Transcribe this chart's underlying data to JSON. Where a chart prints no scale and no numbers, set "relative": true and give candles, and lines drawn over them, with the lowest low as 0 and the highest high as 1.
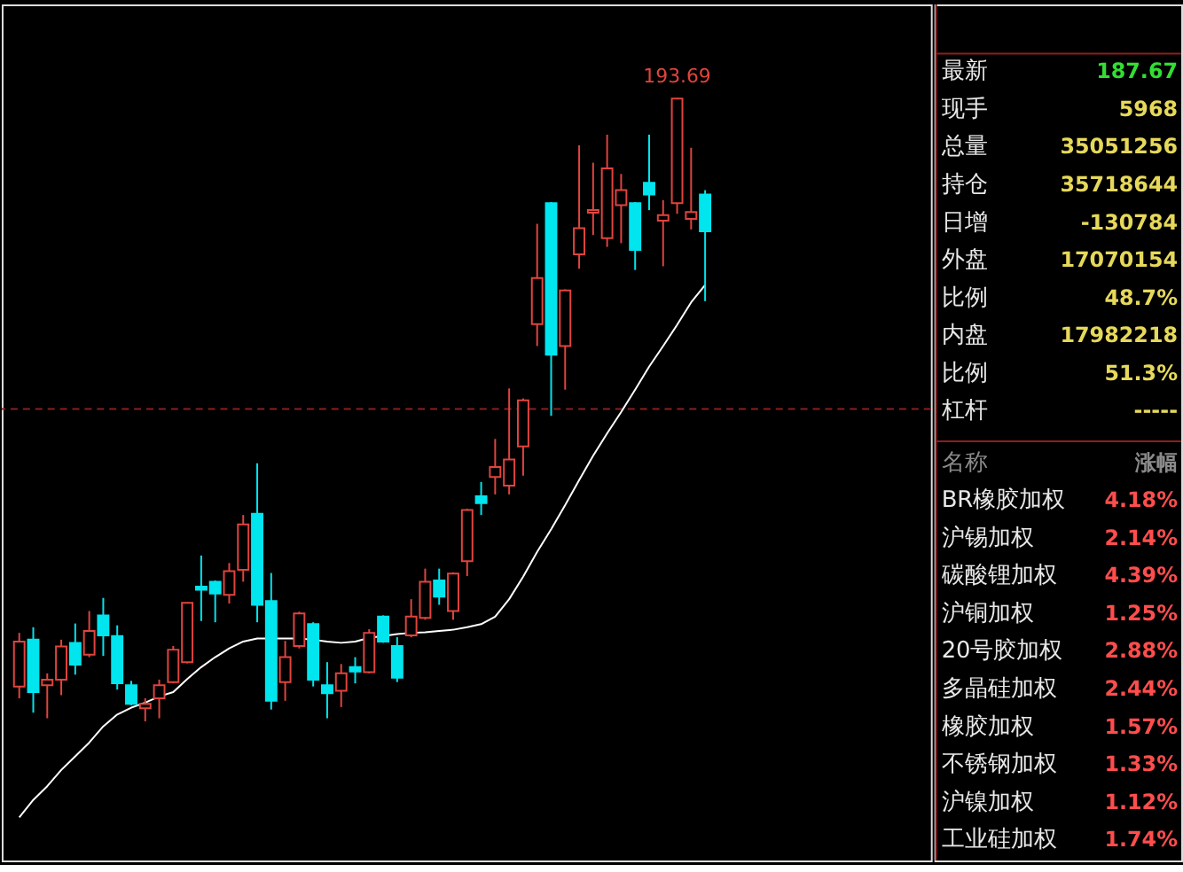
{
  "chart_data": [
    {
      "type": "candlestick",
      "relative": true,
      "categories": [
        null,
        null,
        null,
        null,
        null,
        null,
        null,
        null,
        null,
        null,
        null,
        null,
        null,
        null,
        null,
        null,
        null,
        null,
        null,
        null,
        null,
        null,
        null,
        null,
        null,
        null,
        null,
        null,
        null,
        null,
        null,
        null,
        null,
        null,
        null,
        null,
        null,
        null,
        null,
        null,
        null,
        null,
        null,
        null,
        null,
        null,
        null,
        null,
        null,
        null
      ],
      "ohlc": [
        [
          0.056,
          0.142,
          0.037,
          0.128
        ],
        [
          0.131,
          0.151,
          0.014,
          0.047
        ],
        [
          0.058,
          0.077,
          0.005,
          0.067
        ],
        [
          0.067,
          0.131,
          0.042,
          0.12
        ],
        [
          0.126,
          0.157,
          0.075,
          0.091
        ],
        [
          0.107,
          0.177,
          0.103,
          0.145
        ],
        [
          0.17,
          0.198,
          0.105,
          0.138
        ],
        [
          0.137,
          0.154,
          0.051,
          0.061
        ],
        [
          0.058,
          0.065,
          0.026,
          0.028
        ],
        [
          0.021,
          0.037,
          0,
          0.028
        ],
        [
          0.037,
          0.067,
          0.005,
          0.058
        ],
        [
          0.063,
          0.121,
          0.061,
          0.115
        ],
        [
          0.095,
          0.191,
          0.093,
          0.19
        ],
        [
          0.216,
          0.266,
          0.161,
          0.211
        ],
        [
          0.224,
          0.226,
          0.159,
          0.205
        ],
        [
          0.203,
          0.254,
          0.189,
          0.241
        ],
        [
          0.243,
          0.331,
          0.224,
          0.316
        ],
        [
          0.333,
          0.414,
          0.159,
          0.187
        ],
        [
          0.193,
          0.238,
          0.019,
          0.033
        ],
        [
          0.063,
          0.129,
          0.033,
          0.103
        ],
        [
          0.121,
          0.176,
          0.117,
          0.173
        ],
        [
          0.156,
          0.159,
          0.056,
          0.067
        ],
        [
          0.058,
          0.095,
          0.005,
          0.045
        ],
        [
          0.049,
          0.092,
          0.023,
          0.077
        ],
        [
          0.087,
          0.103,
          0.061,
          0.08
        ],
        [
          0.079,
          0.148,
          0.077,
          0.142
        ],
        [
          0.168,
          0.17,
          0.126,
          0.128
        ],
        [
          0.121,
          0.135,
          0.063,
          0.07
        ],
        [
          0.138,
          0.196,
          0.135,
          0.168
        ],
        [
          0.166,
          0.245,
          0.163,
          0.224
        ],
        [
          0.226,
          0.245,
          0.187,
          0.2
        ],
        [
          0.177,
          0.239,
          0.163,
          0.237
        ],
        [
          0.257,
          0.341,
          0.233,
          0.339
        ],
        [
          0.361,
          0.384,
          0.331,
          0.35
        ],
        [
          0.392,
          0.453,
          0.364,
          0.408
        ],
        [
          0.378,
          0.534,
          0.364,
          0.42
        ],
        [
          0.441,
          0.518,
          0.394,
          0.515
        ],
        [
          0.637,
          0.798,
          0.602,
          0.711
        ],
        [
          0.831,
          0.833,
          0.49,
          0.588
        ],
        [
          0.602,
          0.693,
          0.532,
          0.691
        ],
        [
          0.749,
          0.924,
          0.726,
          0.791
        ],
        [
          0.816,
          0.896,
          0.78,
          0.82
        ],
        [
          0.775,
          0.941,
          0.761,
          0.887
        ],
        [
          0.828,
          0.878,
          0.767,
          0.852
        ],
        [
          0.831,
          0.833,
          0.724,
          0.756
        ],
        [
          0.864,
          0.941,
          0.82,
          0.845
        ],
        [
          0.803,
          0.836,
          0.73,
          0.812
        ],
        [
          0.831,
          1,
          0.814,
          0.999
        ],
        [
          0.806,
          0.92,
          0.789,
          0.817
        ],
        [
          0.845,
          0.852,
          0.674,
          0.786
        ]
      ],
      "colors": [
        "#e0443e",
        "#00e5ee",
        "#e0443e",
        "#e0443e",
        "#00e5ee",
        "#e0443e",
        "#00e5ee",
        "#00e5ee",
        "#00e5ee",
        "#e0443e",
        "#e0443e",
        "#e0443e",
        "#e0443e",
        "#00e5ee",
        "#00e5ee",
        "#e0443e",
        "#e0443e",
        "#00e5ee",
        "#00e5ee",
        "#e0443e",
        "#e0443e",
        "#00e5ee",
        "#00e5ee",
        "#e0443e",
        "#00e5ee",
        "#e0443e",
        "#00e5ee",
        "#00e5ee",
        "#e0443e",
        "#e0443e",
        "#00e5ee",
        "#e0443e",
        "#e0443e",
        "#00e5ee",
        "#e0443e",
        "#e0443e",
        "#e0443e",
        "#e0443e",
        "#00e5ee",
        "#e0443e",
        "#e0443e",
        "#e0443e",
        "#e0443e",
        "#e0443e",
        "#00e5ee",
        "#00e5ee",
        "#e0443e",
        "#e0443e",
        "#e0443e",
        "#00e5ee"
      ],
      "series": [
        {
          "type": "line",
          "color": "#ffffff",
          "values": [
            -0.154,
            -0.126,
            -0.104,
            -0.078,
            -0.056,
            -0.034,
            -0.008,
            0.011,
            0.022,
            0.03,
            0.04,
            0.047,
            0.068,
            0.087,
            0.103,
            0.117,
            0.128,
            0.133,
            0.133,
            0.133,
            0.133,
            0.131,
            0.128,
            0.126,
            0.128,
            0.134,
            0.137,
            0.14,
            0.142,
            0.143,
            0.145,
            0.147,
            0.151,
            0.156,
            0.168,
            0.196,
            0.232,
            0.272,
            0.308,
            0.347,
            0.387,
            0.426,
            0.462,
            0.496,
            0.532,
            0.569,
            0.602,
            0.636,
            0.672,
            0.7
          ]
        }
      ],
      "ref_lines": [
        {
          "axis": "y",
          "value": 0.501,
          "color": "#8b2020",
          "line_style": "dashed"
        }
      ],
      "annotations": [
        {
          "text": "193.69",
          "y": 1
        }
      ],
      "grid": false,
      "tick_labels": false
    },
    {
      "type": "other",
      "annotations": [
        "最新",
        "187.67",
        "现手",
        "5968",
        "总量",
        "35051256",
        "持仓",
        "35718644",
        "日增",
        "-130784",
        "外盘",
        "17070154",
        "比例",
        "48.7%",
        "内盘",
        "17982218",
        "比例",
        "51.3%",
        "杠杆",
        "-----",
        "名称",
        "涨幅",
        "BR橡胶加权",
        "4.18%",
        "沪锡加权",
        "2.14%",
        "碳酸锂加权",
        "4.39%",
        "沪铜加权",
        "1.25%",
        "20号胶加权",
        "2.88%",
        "多晶硅加权",
        "2.44%",
        "橡胶加权",
        "1.57%",
        "不锈钢加权",
        "1.33%",
        "沪镍加权",
        "1.12%",
        "工业硅加权",
        "1.74%"
      ],
      "colors": [
        "#e8e8e8",
        "#33dd33",
        "#e8e8e8",
        "#e6d85a",
        "#e8e8e8",
        "#e6d85a",
        "#e8e8e8",
        "#e6d85a",
        "#e8e8e8",
        "#e6d85a",
        "#e8e8e8",
        "#e6d85a",
        "#e8e8e8",
        "#e6d85a",
        "#e8e8e8",
        "#e6d85a",
        "#e8e8e8",
        "#e6d85a",
        "#e8e8e8",
        "#e6d85a",
        "#8a8a8a",
        "#8a8a8a",
        "#e8e8e8",
        "#ff4d4d",
        "#e8e8e8",
        "#ff4d4d",
        "#e8e8e8",
        "#ff4d4d",
        "#e8e8e8",
        "#ff4d4d",
        "#e8e8e8",
        "#ff4d4d",
        "#e8e8e8",
        "#ff4d4d",
        "#e8e8e8",
        "#ff4d4d",
        "#e8e8e8",
        "#ff4d4d",
        "#e8e8e8",
        "#ff4d4d",
        "#e8e8e8",
        "#ff4d4d"
      ]
    }
  ]
}
